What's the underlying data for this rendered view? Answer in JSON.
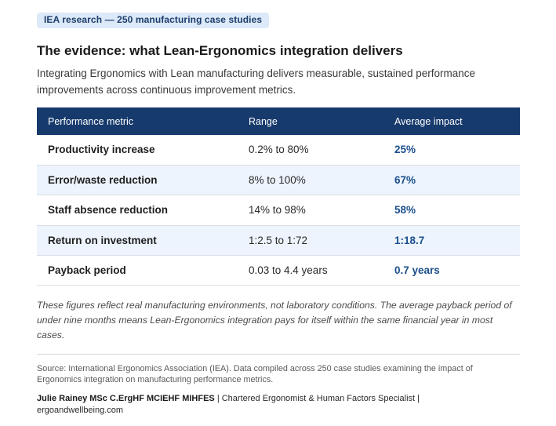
{
  "badge": "IEA research — 250 manufacturing case studies",
  "title": "The evidence: what Lean-Ergonomics integration delivers",
  "intro": "Integrating Ergonomics with Lean manufacturing delivers measurable, sustained performance improvements across continuous improvement metrics.",
  "table": {
    "headers": {
      "metric": "Performance metric",
      "range": "Range",
      "impact": "Average impact"
    },
    "rows": [
      {
        "metric": "Productivity increase",
        "range": "0.2% to 80%",
        "impact": "25%"
      },
      {
        "metric": "Error/waste reduction",
        "range": "8% to 100%",
        "impact": "67%"
      },
      {
        "metric": "Staff absence reduction",
        "range": "14% to 98%",
        "impact": "58%"
      },
      {
        "metric": "Return on investment",
        "range": "1:2.5 to 1:72",
        "impact": "1:18.7"
      },
      {
        "metric": "Payback period",
        "range": "0.03 to 4.4 years",
        "impact": "0.7 years"
      }
    ]
  },
  "note": "These figures reflect real manufacturing environments, not laboratory conditions. The average payback period of under nine months means Lean-Ergonomics integration pays for itself within the same financial year in most cases.",
  "source": "Source: International Ergonomics Association (IEA). Data compiled across 250 case studies examining the impact of Ergonomics integration on manufacturing performance metrics.",
  "author": {
    "name": "Julie Rainey MSc C.ErgHF MCIEHF MIHFES",
    "role": " | Chartered Ergonomist & Human Factors Specialist | ",
    "website": "ergoandwellbeing.com"
  },
  "colors": {
    "header_bg": "#173a6c",
    "badge_bg": "#dce9f8",
    "impact_text": "#1b4f8c",
    "alt_row_bg": "#edf4fd"
  }
}
